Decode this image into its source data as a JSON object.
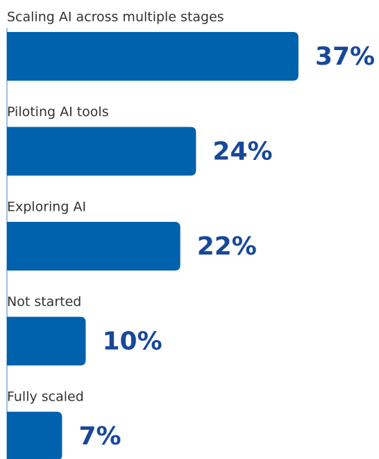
{
  "chart_data": {
    "type": "bar",
    "orientation": "horizontal",
    "categories": [
      "Scaling AI across multiple stages",
      "Piloting AI tools",
      "Exploring AI",
      "Not started",
      "Fully scaled"
    ],
    "values": [
      37,
      24,
      22,
      10,
      7
    ],
    "value_labels": [
      "37%",
      "24%",
      "22%",
      "10%",
      "7%"
    ],
    "color": "#0061ad"
  }
}
